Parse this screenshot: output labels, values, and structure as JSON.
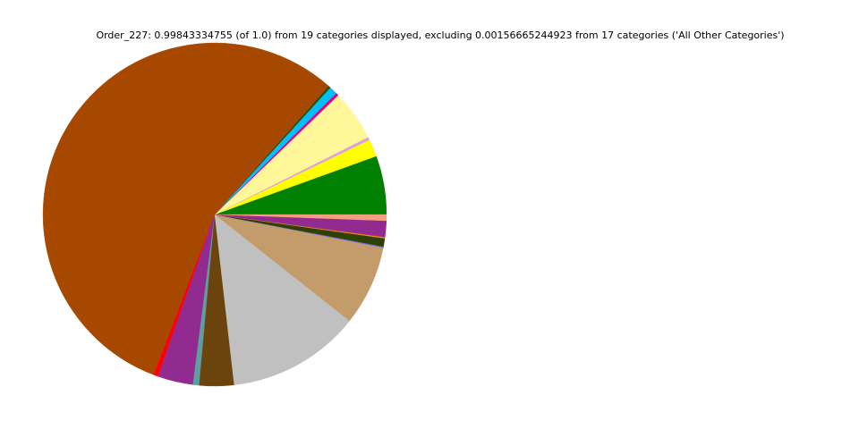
{
  "chart_data": {
    "type": "pie",
    "title": "Order_227: 0.99843334755 (of 1.0) from 19 categories displayed, excluding 0.00156665244923 from 17 categories ('All Other Categories')",
    "start_angle_deg": 0,
    "direction": "counterclockwise",
    "slices": [
      {
        "value": 0.0553,
        "color": "#008000"
      },
      {
        "value": 0.0164,
        "color": "#ffff00"
      },
      {
        "value": 0.0028,
        "color": "#dda0dd"
      },
      {
        "value": 0.0478,
        "color": "#fff799"
      },
      {
        "value": 0.0028,
        "color": "#e6007e"
      },
      {
        "value": 0.0075,
        "color": "#00bfff"
      },
      {
        "value": 0.0022,
        "color": "#2f4f00"
      },
      {
        "value": 0.5575,
        "color": "#a64800"
      },
      {
        "value": 0.0044,
        "color": "#ff0000"
      },
      {
        "value": 0.0333,
        "color": "#922b8f"
      },
      {
        "value": 0.0058,
        "color": "#5f9ea0"
      },
      {
        "value": 0.0325,
        "color": "#6b430c"
      },
      {
        "value": 0.1256,
        "color": "#c0c0c0"
      },
      {
        "value": 0.0753,
        "color": "#c49c6b"
      },
      {
        "value": 0.0011,
        "color": "#7b68ee"
      },
      {
        "value": 0.0078,
        "color": "#2e4200"
      },
      {
        "value": 0.0011,
        "color": "#ff8c00"
      },
      {
        "value": 0.0153,
        "color": "#922b8f"
      },
      {
        "value": 0.0058,
        "color": "#f4a080"
      }
    ]
  }
}
